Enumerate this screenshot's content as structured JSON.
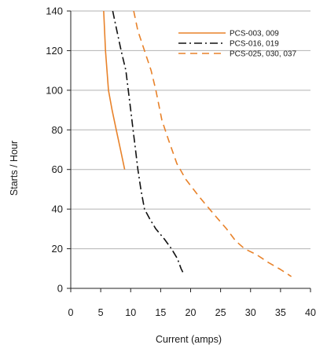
{
  "chart_data": {
    "type": "line",
    "xlabel": "Current (amps)",
    "ylabel": "Starts / Hour",
    "xlim": [
      0,
      40
    ],
    "ylim": [
      0,
      140
    ],
    "xticks": [
      0,
      5,
      10,
      15,
      20,
      25,
      30,
      35,
      40
    ],
    "yticks": [
      0,
      20,
      40,
      60,
      80,
      100,
      120,
      140
    ],
    "grid": "horizontal",
    "legend_position": "top-right",
    "series": [
      {
        "name": "PCS-003, 009",
        "color": "#e8822a",
        "dash": "solid",
        "points": [
          [
            5.5,
            140
          ],
          [
            5.8,
            120
          ],
          [
            6.3,
            100
          ],
          [
            6.9,
            90
          ],
          [
            7.6,
            80
          ],
          [
            8.3,
            70
          ],
          [
            9.0,
            60
          ]
        ]
      },
      {
        "name": "PCS-016, 019",
        "color": "#111111",
        "dash": "dashdot",
        "points": [
          [
            7.0,
            140
          ],
          [
            7.7,
            130
          ],
          [
            8.4,
            120
          ],
          [
            9.2,
            110
          ],
          [
            9.6,
            100
          ],
          [
            10.0,
            90
          ],
          [
            10.4,
            80
          ],
          [
            10.8,
            70
          ],
          [
            11.2,
            60
          ],
          [
            11.7,
            50
          ],
          [
            12.3,
            40
          ],
          [
            13.2,
            35
          ],
          [
            14.2,
            30
          ],
          [
            15.6,
            25
          ],
          [
            16.8,
            20
          ],
          [
            17.8,
            15
          ],
          [
            18.4,
            10
          ],
          [
            18.9,
            7
          ]
        ]
      },
      {
        "name": "PCS-025, 030, 037",
        "color": "#e8822a",
        "dash": "dashed",
        "points": [
          [
            10.5,
            140
          ],
          [
            11.2,
            130
          ],
          [
            12.3,
            120
          ],
          [
            13.4,
            110
          ],
          [
            14.2,
            100
          ],
          [
            15.2,
            85
          ],
          [
            16.3,
            75
          ],
          [
            17.7,
            63
          ],
          [
            19.2,
            55
          ],
          [
            21.5,
            46
          ],
          [
            24.0,
            37
          ],
          [
            26.0,
            30
          ],
          [
            27.5,
            24
          ],
          [
            29.0,
            20
          ],
          [
            31.0,
            17
          ],
          [
            33.0,
            13
          ],
          [
            35.0,
            9.5
          ],
          [
            36.8,
            6
          ]
        ]
      }
    ]
  }
}
